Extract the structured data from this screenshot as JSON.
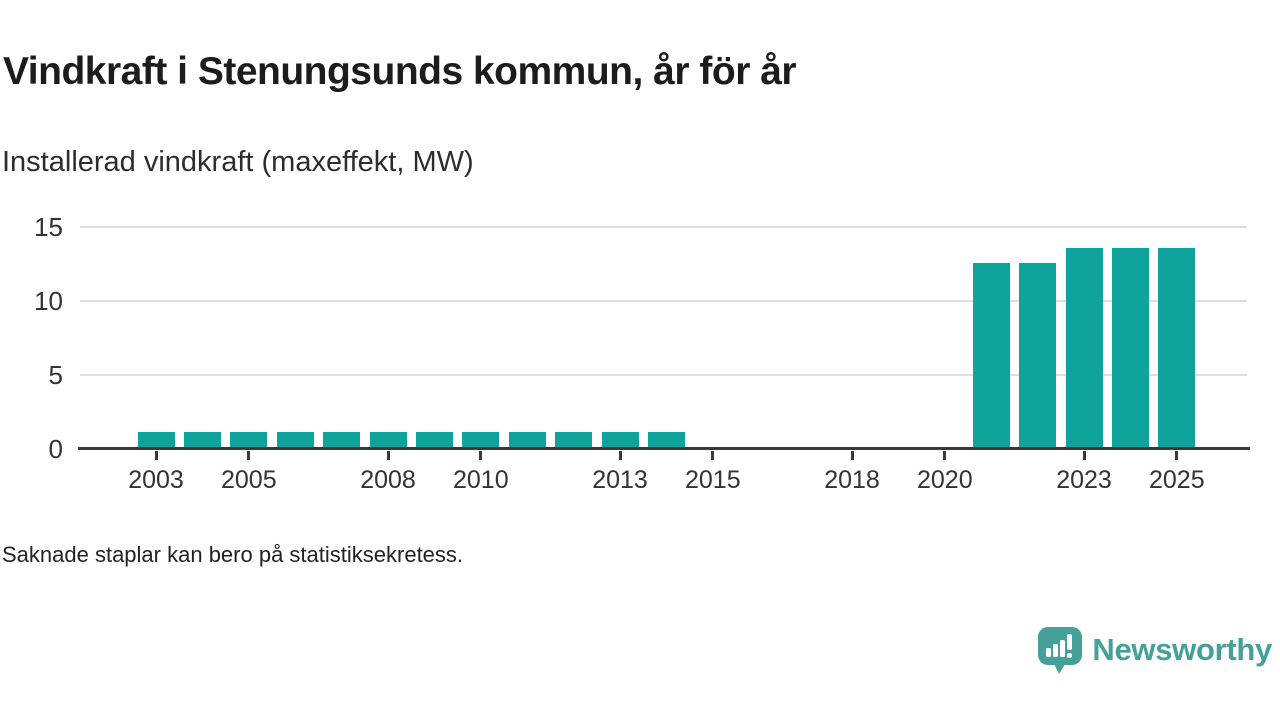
{
  "header": {
    "title": "Vindkraft i Stenungsunds kommun, år för år",
    "subtitle": "Installerad vindkraft (maxeffekt, MW)"
  },
  "chart_data": {
    "type": "bar",
    "title": "Vindkraft i Stenungsunds kommun, år för år",
    "subtitle": "Installerad vindkraft (maxeffekt, MW)",
    "unit": "MW",
    "x": [
      2003,
      2004,
      2005,
      2006,
      2007,
      2008,
      2009,
      2010,
      2011,
      2012,
      2013,
      2014,
      2021,
      2022,
      2023,
      2024,
      2025
    ],
    "values": [
      1.1,
      1.1,
      1.1,
      1.1,
      1.1,
      1.1,
      1.1,
      1.1,
      1.1,
      1.1,
      1.1,
      1.1,
      12.5,
      12.5,
      13.5,
      13.5,
      13.5
    ],
    "missing_years": [
      2015,
      2016,
      2017,
      2018,
      2019,
      2020
    ],
    "x_axis_ticks": [
      2003,
      2005,
      2008,
      2010,
      2013,
      2015,
      2018,
      2020,
      2023,
      2025
    ],
    "y_axis_ticks": [
      0,
      5,
      10,
      15
    ],
    "ylim": [
      0,
      15
    ],
    "x_range": [
      2002,
      2026
    ],
    "grid": "horizontal",
    "legend": "none",
    "bar_color": "#0fa49b"
  },
  "footer": {
    "note": "Saknade staplar kan bero på statistiksekretess."
  },
  "branding": {
    "logo_text": "Newsworthy",
    "logo_color": "#45a099"
  },
  "colors": {
    "bar": "#0fa49b",
    "grid": "#dedede",
    "axis": "#3a3a3a",
    "title": "#1c1c1c",
    "tick_text": "#333333"
  }
}
